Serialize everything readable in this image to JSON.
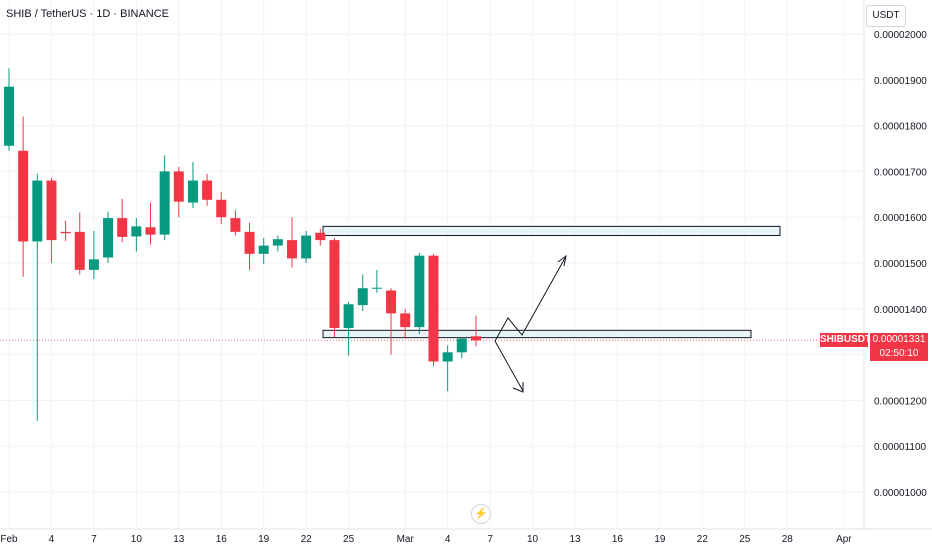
{
  "header": {
    "title": "SHIB / TetherUS · 1D · BINANCE",
    "currency": "USDT"
  },
  "price_label": {
    "symbol": "SHIBUSDT",
    "price": "0.00001331",
    "countdown": "02:50:10"
  },
  "colors": {
    "up": "#089981",
    "down": "#f23645",
    "zone_fill": "#e8f4f8",
    "zone_stroke": "#131722",
    "grid": "#f0f3fa",
    "axis_text": "#131722"
  },
  "chart_data": {
    "type": "candlestick",
    "y_ticks": [
      "0.00002000",
      "0.00001900",
      "0.00001800",
      "0.00001700",
      "0.00001600",
      "0.00001500",
      "0.00001400",
      "0.00001300",
      "0.00001200",
      "0.00001100",
      "0.00001000"
    ],
    "x_ticks": [
      {
        "label": "Feb",
        "date": "Feb 1"
      },
      {
        "label": "4",
        "date": "Feb 4"
      },
      {
        "label": "7",
        "date": "Feb 7"
      },
      {
        "label": "10",
        "date": "Feb 10"
      },
      {
        "label": "13",
        "date": "Feb 13"
      },
      {
        "label": "16",
        "date": "Feb 16"
      },
      {
        "label": "19",
        "date": "Feb 19"
      },
      {
        "label": "22",
        "date": "Feb 22"
      },
      {
        "label": "25",
        "date": "Feb 25"
      },
      {
        "label": "Mar",
        "date": "Mar 1"
      },
      {
        "label": "4",
        "date": "Mar 4"
      },
      {
        "label": "7",
        "date": "Mar 7"
      },
      {
        "label": "10",
        "date": "Mar 10"
      },
      {
        "label": "13",
        "date": "Mar 13"
      },
      {
        "label": "16",
        "date": "Mar 16"
      },
      {
        "label": "19",
        "date": "Mar 19"
      },
      {
        "label": "22",
        "date": "Mar 22"
      },
      {
        "label": "25",
        "date": "Mar 25"
      },
      {
        "label": "28",
        "date": "Mar 28"
      },
      {
        "label": "Apr",
        "date": "Apr 1"
      }
    ],
    "candles": [
      {
        "date": "Feb 1",
        "open": 1.756e-05,
        "high": 1.925e-05,
        "low": 1.745e-05,
        "close": 1.885e-05
      },
      {
        "date": "Feb 2",
        "open": 1.745e-05,
        "high": 1.82e-05,
        "low": 1.47e-05,
        "close": 1.547e-05
      },
      {
        "date": "Feb 3",
        "open": 1.547e-05,
        "high": 1.695e-05,
        "low": 1.155e-05,
        "close": 1.68e-05
      },
      {
        "date": "Feb 4",
        "open": 1.68e-05,
        "high": 1.686e-05,
        "low": 1.5e-05,
        "close": 1.55e-05
      },
      {
        "date": "Feb 5",
        "open": 1.568e-05,
        "high": 1.592e-05,
        "low": 1.548e-05,
        "close": 1.565e-05
      },
      {
        "date": "Feb 6",
        "open": 1.568e-05,
        "high": 1.61e-05,
        "low": 1.475e-05,
        "close": 1.485e-05
      },
      {
        "date": "Feb 7",
        "open": 1.485e-05,
        "high": 1.57e-05,
        "low": 1.465e-05,
        "close": 1.508e-05
      },
      {
        "date": "Feb 8",
        "open": 1.512e-05,
        "high": 1.612e-05,
        "low": 1.5e-05,
        "close": 1.598e-05
      },
      {
        "date": "Feb 9",
        "open": 1.598e-05,
        "high": 1.64e-05,
        "low": 1.545e-05,
        "close": 1.557e-05
      },
      {
        "date": "Feb 10",
        "open": 1.558e-05,
        "high": 1.598e-05,
        "low": 1.525e-05,
        "close": 1.58e-05
      },
      {
        "date": "Feb 11",
        "open": 1.578e-05,
        "high": 1.632e-05,
        "low": 1.54e-05,
        "close": 1.562e-05
      },
      {
        "date": "Feb 12",
        "open": 1.562e-05,
        "high": 1.735e-05,
        "low": 1.55e-05,
        "close": 1.7e-05
      },
      {
        "date": "Feb 13",
        "open": 1.7e-05,
        "high": 1.71e-05,
        "low": 1.6e-05,
        "close": 1.634e-05
      },
      {
        "date": "Feb 14",
        "open": 1.632e-05,
        "high": 1.72e-05,
        "low": 1.62e-05,
        "close": 1.68e-05
      },
      {
        "date": "Feb 15",
        "open": 1.68e-05,
        "high": 1.695e-05,
        "low": 1.625e-05,
        "close": 1.638e-05
      },
      {
        "date": "Feb 16",
        "open": 1.638e-05,
        "high": 1.655e-05,
        "low": 1.585e-05,
        "close": 1.6e-05
      },
      {
        "date": "Feb 17",
        "open": 1.598e-05,
        "high": 1.615e-05,
        "low": 1.56e-05,
        "close": 1.568e-05
      },
      {
        "date": "Feb 18",
        "open": 1.568e-05,
        "high": 1.588e-05,
        "low": 1.485e-05,
        "close": 1.52e-05
      },
      {
        "date": "Feb 19",
        "open": 1.52e-05,
        "high": 1.555e-05,
        "low": 1.498e-05,
        "close": 1.538e-05
      },
      {
        "date": "Feb 20",
        "open": 1.538e-05,
        "high": 1.56e-05,
        "low": 1.525e-05,
        "close": 1.552e-05
      },
      {
        "date": "Feb 21",
        "open": 1.55e-05,
        "high": 1.6e-05,
        "low": 1.49e-05,
        "close": 1.51e-05
      },
      {
        "date": "Feb 22",
        "open": 1.51e-05,
        "high": 1.57e-05,
        "low": 1.5e-05,
        "close": 1.56e-05
      },
      {
        "date": "Feb 23",
        "open": 1.566e-05,
        "high": 1.575e-05,
        "low": 1.538e-05,
        "close": 1.55e-05
      },
      {
        "date": "Feb 24",
        "open": 1.55e-05,
        "high": 1.555e-05,
        "low": 1.338e-05,
        "close": 1.358e-05
      },
      {
        "date": "Feb 25",
        "open": 1.358e-05,
        "high": 1.415e-05,
        "low": 1.298e-05,
        "close": 1.41e-05
      },
      {
        "date": "Feb 26",
        "open": 1.408e-05,
        "high": 1.475e-05,
        "low": 1.395e-05,
        "close": 1.445e-05
      },
      {
        "date": "Feb 27",
        "open": 1.445e-05,
        "high": 1.485e-05,
        "low": 1.435e-05,
        "close": 1.446e-05
      },
      {
        "date": "Feb 28",
        "open": 1.44e-05,
        "high": 1.445e-05,
        "low": 1.3e-05,
        "close": 1.39e-05
      },
      {
        "date": "Mar 1",
        "open": 1.39e-05,
        "high": 1.4e-05,
        "low": 1.335e-05,
        "close": 1.36e-05
      },
      {
        "date": "Mar 2",
        "open": 1.36e-05,
        "high": 1.522e-05,
        "low": 1.345e-05,
        "close": 1.516e-05
      },
      {
        "date": "Mar 3",
        "open": 1.516e-05,
        "high": 1.52e-05,
        "low": 1.275e-05,
        "close": 1.285e-05
      },
      {
        "date": "Mar 4",
        "open": 1.285e-05,
        "high": 1.32e-05,
        "low": 1.22e-05,
        "close": 1.305e-05
      },
      {
        "date": "Mar 5",
        "open": 1.305e-05,
        "high": 1.338e-05,
        "low": 1.292e-05,
        "close": 1.335e-05
      },
      {
        "date": "Mar 6",
        "open": 1.34e-05,
        "high": 1.385e-05,
        "low": 1.318e-05,
        "close": 1.331e-05
      }
    ]
  }
}
